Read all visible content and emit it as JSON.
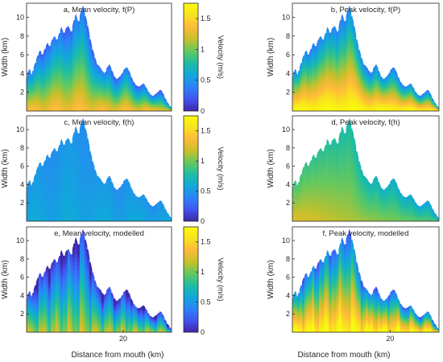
{
  "figure": {
    "xlabel": "Distance from mouth (km)",
    "ylabel": "Width (km)",
    "colorbar_label": "Velocity (m/s)",
    "colormap": "parula",
    "colormap_stops": [
      "#3e26a8",
      "#4154f0",
      "#2b83f6",
      "#11a7dc",
      "#1fbda1",
      "#63c85f",
      "#c7c02a",
      "#fdb93a",
      "#f9e11e",
      "#f9fb0e"
    ]
  },
  "chart_data": [
    {
      "type": "heatmap",
      "panel": "a",
      "title": "a, Mean velocity, f(P)",
      "xlim": [
        0,
        30
      ],
      "ylim": [
        0,
        11.5
      ],
      "y_ticks": [
        2,
        4,
        6,
        8,
        10
      ],
      "x_ticks": [],
      "color_range": [
        0,
        1.75
      ],
      "colorbar_ticks": [
        0,
        0.5,
        1,
        1.5
      ],
      "profile": "velocity greatest along centreline near y=0 (~1.4 m/s), decreasing toward channel edges (~0.2 m/s)"
    },
    {
      "type": "heatmap",
      "panel": "b",
      "title": "b, Peak velocity, f(P)",
      "xlim": [
        0,
        30
      ],
      "ylim": [
        0,
        11.5
      ],
      "y_ticks": [
        2,
        4,
        6,
        8,
        10
      ],
      "x_ticks": [],
      "color_range": [
        0,
        1.75
      ],
      "profile": "velocity greatest near y=0 (~1.75 m/s), decreasing toward edges (~0.4 m/s)"
    },
    {
      "type": "heatmap",
      "panel": "c",
      "title": "c, Mean velocity, f(h)",
      "xlim": [
        0,
        30
      ],
      "ylim": [
        0,
        11.5
      ],
      "y_ticks": [
        2,
        4,
        6,
        8,
        10
      ],
      "x_ticks": [],
      "color_range": [
        0,
        1.75
      ],
      "colorbar_ticks": [
        0,
        0.5,
        1,
        1.5
      ],
      "profile": "fairly uniform velocity ~0.5-0.6 m/s across section"
    },
    {
      "type": "heatmap",
      "panel": "d",
      "title": "d, Peak velocity, f(h)",
      "xlim": [
        0,
        30
      ],
      "ylim": [
        0,
        11.5
      ],
      "y_ticks": [
        2,
        4,
        6,
        8,
        10
      ],
      "x_ticks": [],
      "color_range": [
        0,
        1.75
      ],
      "profile": "velocity ~1.2 m/s near mouth, decreasing upstream to ~0.8 m/s"
    },
    {
      "type": "heatmap",
      "panel": "e",
      "title": "e, Mean velocity, modelled",
      "xlim": [
        0,
        30
      ],
      "ylim": [
        0,
        11.5
      ],
      "y_ticks": [
        2,
        4,
        6,
        8,
        10
      ],
      "x_ticks": [
        20
      ],
      "color_range": [
        0,
        1.75
      ],
      "colorbar_ticks": [
        0,
        0.5,
        1,
        1.5
      ],
      "profile": "modelled: ~1.1 m/s near y=0, ~0.1 m/s at edges, with along-channel variability"
    },
    {
      "type": "heatmap",
      "panel": "f",
      "title": "f, Peak velocity, modelled",
      "xlim": [
        0,
        30
      ],
      "ylim": [
        0,
        11.5
      ],
      "y_ticks": [
        2,
        4,
        6,
        8,
        10
      ],
      "x_ticks": [
        20
      ],
      "color_range": [
        0,
        1.75
      ],
      "profile": "modelled: ~1.7 m/s near y=0, ~0.3 m/s at edges, with along-channel variability"
    }
  ],
  "outline": {
    "x": [
      0,
      0.3,
      0.6,
      1,
      1.4,
      1.8,
      2.3,
      2.8,
      3.3,
      3.8,
      4.3,
      4.8,
      5.3,
      5.8,
      6.3,
      6.8,
      7.2,
      7.7,
      8.2,
      8.7,
      9.2,
      9.7,
      10.2,
      10.7,
      11.2,
      11.7,
      12.2,
      12.7,
      13.1,
      13.6,
      14.1,
      14.6,
      15.1,
      15.6,
      16.1,
      16.6,
      17.1,
      17.6,
      18.1,
      18.6,
      19.1,
      19.6,
      20.1,
      20.6,
      21.1,
      21.6,
      22.1,
      22.6,
      23.1,
      23.6,
      24.1,
      24.6,
      25.1,
      25.6,
      26.1,
      26.6,
      27.1,
      27.6,
      28.1,
      28.6,
      29.1,
      29.6,
      30
    ],
    "width_km": [
      3.3,
      4.4,
      4.8,
      3.8,
      4.6,
      5.2,
      6.0,
      6.5,
      6.0,
      6.7,
      7.3,
      6.9,
      7.7,
      8.0,
      7.6,
      8.4,
      9.0,
      8.3,
      8.9,
      9.1,
      8.4,
      9.6,
      10.4,
      9.5,
      10.6,
      11.3,
      10.2,
      9.2,
      8.0,
      6.8,
      5.9,
      5.0,
      4.8,
      4.4,
      4.0,
      4.6,
      5.1,
      4.5,
      3.8,
      3.4,
      3.6,
      3.9,
      4.4,
      4.7,
      4.5,
      3.8,
      3.2,
      2.8,
      2.6,
      2.7,
      3.0,
      2.7,
      2.2,
      1.8,
      1.6,
      1.8,
      2.0,
      2.3,
      2.1,
      1.5,
      1.0,
      0.6,
      0.3
    ]
  }
}
